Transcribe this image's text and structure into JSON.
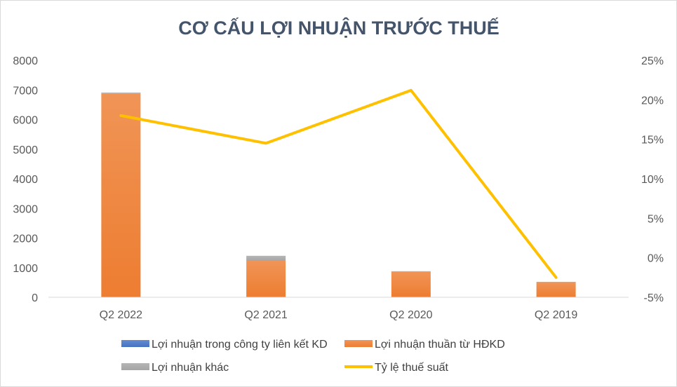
{
  "chart_data": {
    "type": "bar",
    "title": "CƠ CẤU LỢI NHUẬN TRƯỚC THUẾ",
    "categories": [
      "Q2 2022",
      "Q2 2021",
      "Q2 2020",
      "Q2 2019"
    ],
    "series": [
      {
        "name": "Lợi nhuận trong công ty liên kết KD",
        "kind": "stacked-bar",
        "axis": "left",
        "color": "#4472c4",
        "values": [
          0,
          0,
          0,
          0
        ]
      },
      {
        "name": "Lợi nhuận thuần từ HĐKD",
        "kind": "stacked-bar",
        "axis": "left",
        "color": "#ed7d31",
        "values": [
          6870,
          1230,
          870,
          510
        ]
      },
      {
        "name": "Lợi nhuận khác",
        "kind": "stacked-bar",
        "axis": "left",
        "color": "#a5a5a5",
        "values": [
          40,
          170,
          10,
          10
        ]
      },
      {
        "name": "Tỷ lệ thuế suất",
        "kind": "line",
        "axis": "right",
        "color": "#ffc000",
        "values": [
          18.0,
          14.5,
          21.2,
          -2.5
        ]
      }
    ],
    "y_left": {
      "min": 0,
      "max": 8000,
      "ticks": [
        "0",
        "1000",
        "2000",
        "3000",
        "4000",
        "5000",
        "6000",
        "7000",
        "8000"
      ]
    },
    "y_right": {
      "min": -5,
      "max": 25,
      "ticks": [
        "-5%",
        "0%",
        "5%",
        "10%",
        "15%",
        "20%",
        "25%"
      ]
    },
    "grid": false,
    "legend_position": "bottom"
  }
}
